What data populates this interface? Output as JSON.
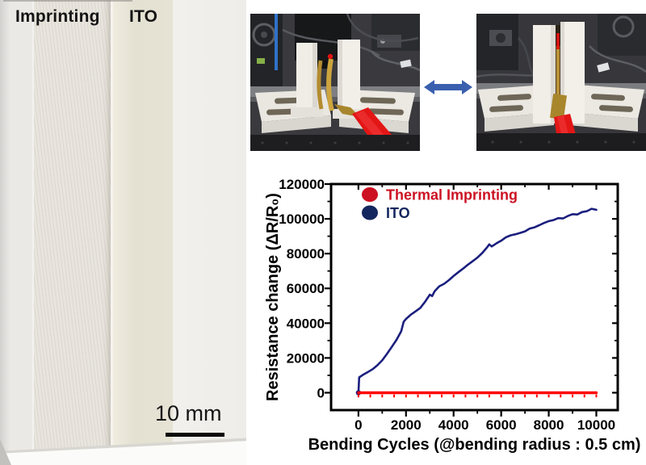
{
  "figure": {
    "sample_panel": {
      "photo_name": "film-samples-photo",
      "label_imprinting": "Imprinting",
      "label_ito": "ITO",
      "scale_bar": {
        "label": "10 mm",
        "color": "#0d0d0d"
      }
    },
    "apparatus_panel": {
      "left_photo_name": "bending-tester-released-photo",
      "right_photo_name": "bending-tester-bent-photo",
      "arrow_icon": "double-headed-arrow",
      "arrow_color": "#3a5fae"
    }
  },
  "chart_data": {
    "type": "line",
    "title": "",
    "xlabel": "Bending Cycles (@bending radius : 0.5 cm)",
    "ylabel": "Resistance change (ΔR/R₀)",
    "xlim": [
      -1150,
      10900
    ],
    "ylim": [
      -10000,
      120000
    ],
    "xticks": [
      0,
      2000,
      4000,
      6000,
      8000,
      10000
    ],
    "yticks": [
      0,
      20000,
      40000,
      60000,
      80000,
      100000,
      120000
    ],
    "x_minor_step": 1000,
    "y_minor_step": 10000,
    "grid": false,
    "legend_position": "top-left",
    "axis_color": "#000000",
    "series": [
      {
        "name": "Thermal Imprinting",
        "line_color": "#fe0000",
        "legend_color": "#cc1122",
        "line_width": 3.4,
        "marker": "tick",
        "values": [
          [
            0,
            0
          ],
          [
            500,
            0
          ],
          [
            1000,
            0
          ],
          [
            1500,
            0
          ],
          [
            2000,
            0
          ],
          [
            2500,
            0
          ],
          [
            3000,
            0
          ],
          [
            3500,
            0
          ],
          [
            4000,
            0
          ],
          [
            4500,
            0
          ],
          [
            5000,
            0
          ],
          [
            5500,
            0
          ],
          [
            6000,
            0
          ],
          [
            6500,
            0
          ],
          [
            7000,
            0
          ],
          [
            7500,
            0
          ],
          [
            8000,
            0
          ],
          [
            8500,
            0
          ],
          [
            9000,
            0
          ],
          [
            9500,
            0
          ],
          [
            10000,
            0
          ]
        ]
      },
      {
        "name": "ITO",
        "line_color": "#1b1f7e",
        "legend_color": "#14265e",
        "line_width": 2.6,
        "marker": "dot-first",
        "values": [
          [
            0,
            0
          ],
          [
            30,
            8800
          ],
          [
            200,
            10400
          ],
          [
            400,
            11900
          ],
          [
            600,
            13600
          ],
          [
            800,
            15800
          ],
          [
            1000,
            18600
          ],
          [
            1200,
            22300
          ],
          [
            1400,
            26300
          ],
          [
            1600,
            30400
          ],
          [
            1800,
            35400
          ],
          [
            1900,
            40800
          ],
          [
            2000,
            42400
          ],
          [
            2200,
            44900
          ],
          [
            2400,
            46800
          ],
          [
            2600,
            48800
          ],
          [
            2800,
            52300
          ],
          [
            3000,
            56400
          ],
          [
            3100,
            55600
          ],
          [
            3200,
            58300
          ],
          [
            3400,
            61200
          ],
          [
            3600,
            62600
          ],
          [
            3800,
            64700
          ],
          [
            4000,
            67100
          ],
          [
            4200,
            69300
          ],
          [
            4400,
            71400
          ],
          [
            4600,
            73600
          ],
          [
            4800,
            75600
          ],
          [
            5000,
            77700
          ],
          [
            5200,
            80300
          ],
          [
            5400,
            83500
          ],
          [
            5500,
            85300
          ],
          [
            5600,
            84100
          ],
          [
            5800,
            85900
          ],
          [
            6000,
            87400
          ],
          [
            6200,
            89400
          ],
          [
            6400,
            90500
          ],
          [
            6600,
            91100
          ],
          [
            6800,
            91900
          ],
          [
            7000,
            92800
          ],
          [
            7200,
            94400
          ],
          [
            7400,
            95100
          ],
          [
            7600,
            96300
          ],
          [
            7800,
            97600
          ],
          [
            8000,
            98700
          ],
          [
            8200,
            99300
          ],
          [
            8400,
            100400
          ],
          [
            8600,
            100200
          ],
          [
            8800,
            101600
          ],
          [
            9000,
            102700
          ],
          [
            9200,
            102500
          ],
          [
            9400,
            103900
          ],
          [
            9600,
            104400
          ],
          [
            9800,
            105800
          ],
          [
            10000,
            105200
          ]
        ]
      }
    ]
  }
}
